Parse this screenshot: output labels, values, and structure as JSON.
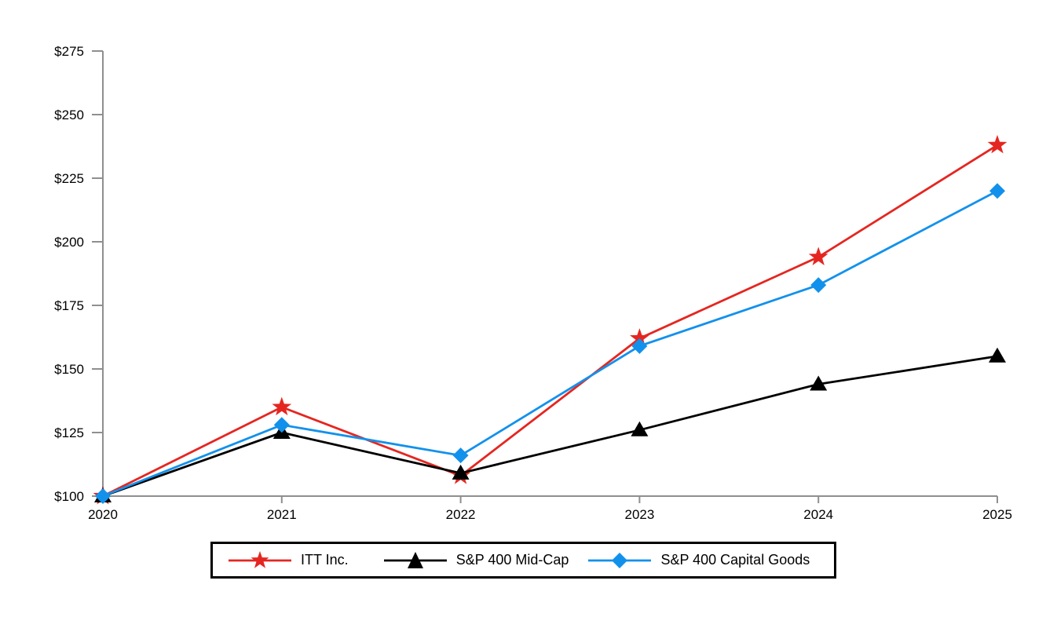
{
  "chart_data": {
    "type": "line",
    "title": "",
    "xlabel": "",
    "ylabel": "",
    "categories": [
      "2020",
      "2021",
      "2022",
      "2023",
      "2024",
      "2025"
    ],
    "y_ticks": [
      100,
      125,
      150,
      175,
      200,
      225,
      250,
      275
    ],
    "y_tick_labels": [
      "$100",
      "$125",
      "$150",
      "$175",
      "$200",
      "$225",
      "$250",
      "$275"
    ],
    "ylim": [
      100,
      275
    ],
    "grid": false,
    "legend_position": "bottom",
    "axis_color": "#8f8f8f",
    "series": [
      {
        "name": "ITT Inc.",
        "color": "#e52620",
        "marker": "star",
        "values": [
          100,
          135,
          108,
          162,
          194,
          238
        ]
      },
      {
        "name": "S&P 400 Mid-Cap",
        "color": "#000000",
        "marker": "triangle",
        "values": [
          100,
          125,
          109,
          126,
          144,
          155
        ]
      },
      {
        "name": "S&P 400 Capital Goods",
        "color": "#1291ec",
        "marker": "diamond",
        "values": [
          100,
          128,
          116,
          159,
          183,
          220
        ]
      }
    ]
  }
}
